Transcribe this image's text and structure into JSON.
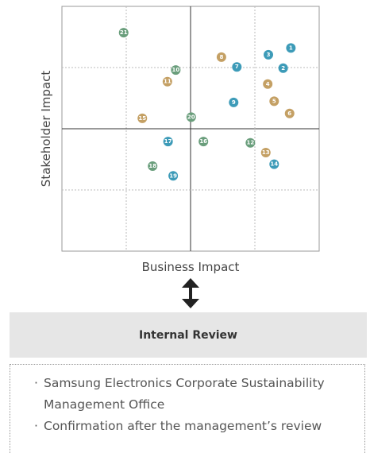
{
  "chart_data": {
    "type": "scatter",
    "xlabel": "Business Impact",
    "ylabel": "Stakeholder Impact",
    "xlim": [
      0,
      4
    ],
    "ylim": [
      0,
      4
    ],
    "points": [
      {
        "label": "1",
        "x": 3.56,
        "y": 3.32,
        "color": "#3d9bb8"
      },
      {
        "label": "2",
        "x": 3.44,
        "y": 2.99,
        "color": "#3d9bb8"
      },
      {
        "label": "3",
        "x": 3.21,
        "y": 3.21,
        "color": "#3d9bb8"
      },
      {
        "label": "4",
        "x": 3.2,
        "y": 2.73,
        "color": "#c4a064"
      },
      {
        "label": "5",
        "x": 3.3,
        "y": 2.45,
        "color": "#c4a064"
      },
      {
        "label": "6",
        "x": 3.54,
        "y": 2.25,
        "color": "#c4a064"
      },
      {
        "label": "7",
        "x": 2.72,
        "y": 3.01,
        "color": "#3d9bb8"
      },
      {
        "label": "8",
        "x": 2.48,
        "y": 3.17,
        "color": "#c4a064"
      },
      {
        "label": "9",
        "x": 2.67,
        "y": 2.43,
        "color": "#3d9bb8"
      },
      {
        "label": "10",
        "x": 1.77,
        "y": 2.96,
        "color": "#6a9e7c"
      },
      {
        "label": "11",
        "x": 1.64,
        "y": 2.77,
        "color": "#c4a064"
      },
      {
        "label": "12",
        "x": 2.93,
        "y": 1.77,
        "color": "#6a9e7c"
      },
      {
        "label": "13",
        "x": 3.17,
        "y": 1.61,
        "color": "#c4a064"
      },
      {
        "label": "14",
        "x": 3.3,
        "y": 1.42,
        "color": "#3d9bb8"
      },
      {
        "label": "15",
        "x": 1.25,
        "y": 2.17,
        "color": "#c4a064"
      },
      {
        "label": "16",
        "x": 2.2,
        "y": 1.79,
        "color": "#6a9e7c"
      },
      {
        "label": "17",
        "x": 1.65,
        "y": 1.79,
        "color": "#3d9bb8"
      },
      {
        "label": "18",
        "x": 1.41,
        "y": 1.39,
        "color": "#6a9e7c"
      },
      {
        "label": "19",
        "x": 1.73,
        "y": 1.23,
        "color": "#3d9bb8"
      },
      {
        "label": "20",
        "x": 2.01,
        "y": 2.19,
        "color": "#6a9e7c"
      },
      {
        "label": "21",
        "x": 0.96,
        "y": 3.57,
        "color": "#6a9e7c"
      }
    ]
  },
  "review": {
    "title": "Internal Review",
    "items": [
      "Samsung Electronics Corporate Sustainability Management Office",
      "Confirmation after the management’s review"
    ]
  }
}
